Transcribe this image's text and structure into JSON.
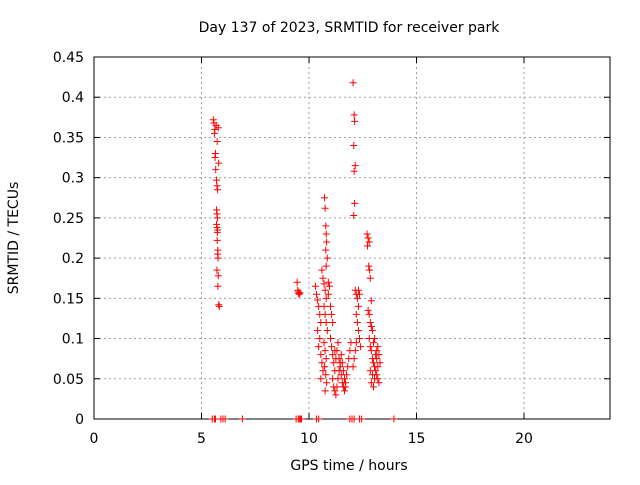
{
  "chart_data": {
    "type": "scatter",
    "title": "Day 137 of 2023, SRMTID for receiver park",
    "xlabel": "GPS time / hours",
    "ylabel": "SRMTID / TECUs",
    "xlim": [
      0,
      24
    ],
    "ylim": [
      0,
      0.45
    ],
    "xticks": [
      0,
      5,
      10,
      15,
      20
    ],
    "xtick_labels": [
      "0",
      "5",
      "10",
      "15",
      "20"
    ],
    "yticks": [
      0,
      0.05,
      0.1,
      0.15,
      0.2,
      0.25,
      0.3,
      0.35,
      0.4,
      0.45
    ],
    "ytick_labels": [
      "0",
      "0.05",
      "0.1",
      "0.15",
      "0.2",
      "0.25",
      "0.3",
      "0.35",
      "0.4",
      "0.45"
    ],
    "grid": true,
    "marker": "+",
    "color": "#ff0000",
    "series": [
      {
        "name": "SRMTID",
        "points": [
          [
            5.55,
            0.372
          ],
          [
            5.58,
            0.368
          ],
          [
            5.6,
            0.355
          ],
          [
            5.62,
            0.36
          ],
          [
            5.65,
            0.33
          ],
          [
            5.63,
            0.325
          ],
          [
            5.7,
            0.297
          ],
          [
            5.72,
            0.29
          ],
          [
            5.75,
            0.285
          ],
          [
            5.68,
            0.365
          ],
          [
            5.78,
            0.362
          ],
          [
            5.73,
            0.345
          ],
          [
            5.8,
            0.318
          ],
          [
            5.66,
            0.31
          ],
          [
            5.7,
            0.26
          ],
          [
            5.72,
            0.255
          ],
          [
            5.74,
            0.25
          ],
          [
            5.7,
            0.242
          ],
          [
            5.72,
            0.238
          ],
          [
            5.75,
            0.235
          ],
          [
            5.74,
            0.232
          ],
          [
            5.73,
            0.222
          ],
          [
            5.76,
            0.21
          ],
          [
            5.75,
            0.205
          ],
          [
            5.77,
            0.2
          ],
          [
            5.72,
            0.185
          ],
          [
            5.78,
            0.178
          ],
          [
            5.76,
            0.165
          ],
          [
            5.8,
            0.142
          ],
          [
            5.83,
            0.14
          ],
          [
            9.45,
            0.17
          ],
          [
            9.48,
            0.16
          ],
          [
            9.5,
            0.158
          ],
          [
            9.52,
            0.156
          ],
          [
            9.55,
            0.155
          ],
          [
            9.58,
            0.157
          ],
          [
            10.3,
            0.165
          ],
          [
            10.35,
            0.155
          ],
          [
            10.4,
            0.148
          ],
          [
            10.45,
            0.14
          ],
          [
            10.5,
            0.13
          ],
          [
            10.55,
            0.12
          ],
          [
            10.4,
            0.11
          ],
          [
            10.5,
            0.1
          ],
          [
            10.45,
            0.09
          ],
          [
            10.55,
            0.08
          ],
          [
            10.6,
            0.07
          ],
          [
            10.65,
            0.06
          ],
          [
            10.55,
            0.05
          ],
          [
            10.6,
            0.185
          ],
          [
            10.65,
            0.175
          ],
          [
            10.7,
            0.168
          ],
          [
            10.75,
            0.16
          ],
          [
            10.8,
            0.15
          ],
          [
            10.7,
            0.14
          ],
          [
            10.75,
            0.13
          ],
          [
            10.8,
            0.12
          ],
          [
            10.85,
            0.11
          ],
          [
            10.7,
            0.095
          ],
          [
            10.75,
            0.085
          ],
          [
            10.8,
            0.075
          ],
          [
            10.72,
            0.065
          ],
          [
            10.78,
            0.055
          ],
          [
            10.82,
            0.045
          ],
          [
            10.75,
            0.035
          ],
          [
            10.72,
            0.275
          ],
          [
            10.75,
            0.262
          ],
          [
            10.78,
            0.24
          ],
          [
            10.8,
            0.23
          ],
          [
            10.82,
            0.22
          ],
          [
            10.78,
            0.21
          ],
          [
            10.85,
            0.2
          ],
          [
            10.8,
            0.19
          ],
          [
            10.9,
            0.17
          ],
          [
            10.95,
            0.165
          ],
          [
            10.9,
            0.155
          ],
          [
            11.0,
            0.14
          ],
          [
            11.05,
            0.13
          ],
          [
            11.1,
            0.12
          ],
          [
            11.0,
            0.1
          ],
          [
            11.05,
            0.09
          ],
          [
            11.1,
            0.08
          ],
          [
            11.15,
            0.07
          ],
          [
            11.2,
            0.06
          ],
          [
            11.1,
            0.05
          ],
          [
            11.15,
            0.04
          ],
          [
            11.2,
            0.035
          ],
          [
            11.25,
            0.03
          ],
          [
            11.3,
            0.04
          ],
          [
            11.35,
            0.05
          ],
          [
            11.4,
            0.06
          ],
          [
            11.45,
            0.07
          ],
          [
            11.5,
            0.08
          ],
          [
            11.55,
            0.07
          ],
          [
            11.6,
            0.06
          ],
          [
            11.65,
            0.05
          ],
          [
            11.7,
            0.045
          ],
          [
            11.75,
            0.055
          ],
          [
            11.8,
            0.065
          ],
          [
            11.85,
            0.075
          ],
          [
            11.9,
            0.085
          ],
          [
            11.95,
            0.095
          ],
          [
            11.3,
            0.085
          ],
          [
            11.35,
            0.095
          ],
          [
            11.4,
            0.075
          ],
          [
            11.45,
            0.065
          ],
          [
            11.5,
            0.055
          ],
          [
            11.55,
            0.045
          ],
          [
            11.6,
            0.04
          ],
          [
            11.65,
            0.035
          ],
          [
            11.7,
            0.04
          ],
          [
            11.25,
            0.075
          ],
          [
            11.2,
            0.085
          ],
          [
            12.05,
            0.418
          ],
          [
            12.1,
            0.378
          ],
          [
            12.12,
            0.37
          ],
          [
            12.08,
            0.34
          ],
          [
            12.15,
            0.315
          ],
          [
            12.1,
            0.308
          ],
          [
            12.12,
            0.268
          ],
          [
            12.08,
            0.253
          ],
          [
            12.15,
            0.16
          ],
          [
            12.2,
            0.155
          ],
          [
            12.25,
            0.15
          ],
          [
            12.3,
            0.14
          ],
          [
            12.2,
            0.13
          ],
          [
            12.25,
            0.12
          ],
          [
            12.3,
            0.11
          ],
          [
            12.35,
            0.1
          ],
          [
            12.4,
            0.09
          ],
          [
            12.2,
            0.095
          ],
          [
            12.15,
            0.085
          ],
          [
            12.1,
            0.075
          ],
          [
            12.05,
            0.065
          ],
          [
            12.3,
            0.16
          ],
          [
            12.35,
            0.155
          ],
          [
            12.7,
            0.23
          ],
          [
            12.75,
            0.225
          ],
          [
            12.8,
            0.22
          ],
          [
            12.72,
            0.215
          ],
          [
            12.78,
            0.19
          ],
          [
            12.82,
            0.185
          ],
          [
            12.85,
            0.175
          ],
          [
            12.9,
            0.147
          ],
          [
            12.75,
            0.135
          ],
          [
            12.8,
            0.13
          ],
          [
            12.85,
            0.12
          ],
          [
            12.9,
            0.115
          ],
          [
            12.95,
            0.11
          ],
          [
            12.8,
            0.1
          ],
          [
            12.85,
            0.09
          ],
          [
            12.9,
            0.085
          ],
          [
            12.95,
            0.075
          ],
          [
            13.0,
            0.07
          ],
          [
            13.05,
            0.065
          ],
          [
            13.1,
            0.06
          ],
          [
            13.15,
            0.055
          ],
          [
            13.2,
            0.05
          ],
          [
            13.25,
            0.045
          ],
          [
            13.0,
            0.04
          ],
          [
            13.05,
            0.05
          ],
          [
            13.1,
            0.08
          ],
          [
            13.15,
            0.085
          ],
          [
            13.2,
            0.09
          ],
          [
            13.25,
            0.08
          ],
          [
            13.3,
            0.07
          ],
          [
            13.2,
            0.065
          ],
          [
            13.15,
            0.075
          ],
          [
            13.0,
            0.095
          ],
          [
            13.05,
            0.1
          ],
          [
            12.95,
            0.055
          ],
          [
            12.9,
            0.045
          ],
          [
            12.85,
            0.06
          ],
          [
            5.5,
            0.0
          ],
          [
            5.6,
            0.0
          ],
          [
            5.65,
            0.0
          ],
          [
            5.9,
            0.0
          ],
          [
            6.0,
            0.0
          ],
          [
            6.1,
            0.0
          ],
          [
            6.9,
            0.0
          ],
          [
            9.4,
            0.0
          ],
          [
            9.5,
            0.0
          ],
          [
            9.55,
            0.0
          ],
          [
            9.6,
            0.0
          ],
          [
            9.65,
            0.0
          ],
          [
            10.35,
            0.0
          ],
          [
            10.45,
            0.0
          ],
          [
            11.9,
            0.0
          ],
          [
            12.0,
            0.0
          ],
          [
            12.1,
            0.0
          ],
          [
            12.35,
            0.0
          ],
          [
            12.45,
            0.0
          ],
          [
            13.95,
            0.0
          ]
        ]
      }
    ]
  }
}
